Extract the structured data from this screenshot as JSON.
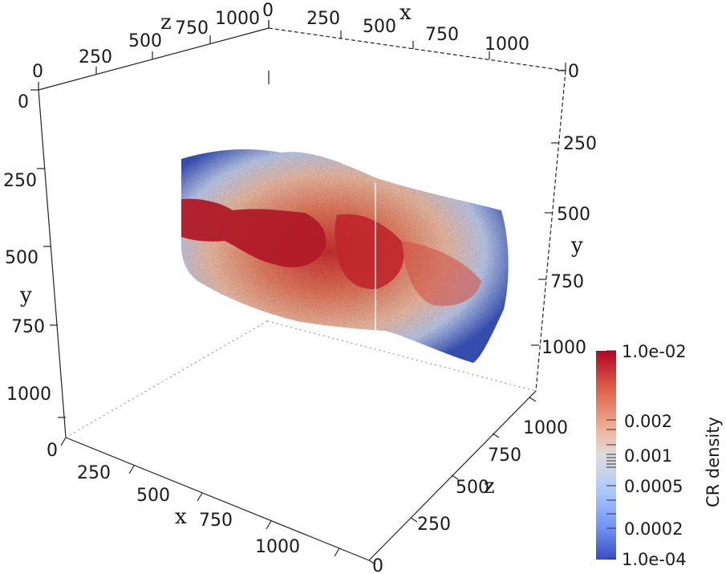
{
  "colorbar": {
    "title": "CR density",
    "max_label": "1.0e-02",
    "min_label": "1.0e-04",
    "labels": [
      "0.002",
      "0.001",
      "0.0005",
      "0.0002"
    ],
    "colors": {
      "high": "#b40426",
      "mid": "#dddddd",
      "low": "#3b4cc0"
    }
  },
  "axes": {
    "x_title": "x",
    "y_title": "y",
    "z_title": "z",
    "x_ticks": [
      "0",
      "250",
      "500",
      "750",
      "1000"
    ],
    "y_ticks": [
      "0",
      "250",
      "500",
      "750",
      "1000"
    ],
    "z_ticks": [
      "0",
      "250",
      "500",
      "750",
      "1000"
    ],
    "z_top_ticks": [
      "0",
      "250",
      "500",
      "750",
      "1000"
    ],
    "x_top_ticks": [
      "0",
      "250",
      "500",
      "750",
      "1000"
    ],
    "y_right_ticks": [
      "0",
      "250",
      "500",
      "750",
      "1000"
    ],
    "z_right_ticks": [
      "250",
      "500",
      "750",
      "1000"
    ]
  }
}
